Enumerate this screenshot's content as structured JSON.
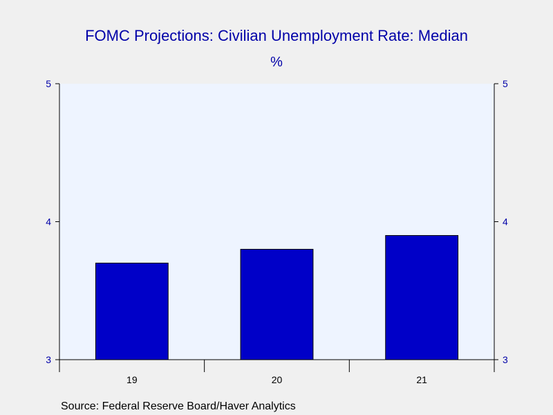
{
  "colors": {
    "background": "#f0f0f0",
    "plot_area": "#eef4ff",
    "bar_fill": "#0000c8",
    "bar_stroke": "#000000",
    "title_color": "#0000a8",
    "axis_color": "#000000",
    "tick_label_color": "#0000a8",
    "source_color": "#000000"
  },
  "chart_data": {
    "type": "bar",
    "title": "FOMC Projections: Civilian Unemployment Rate: Median",
    "subtitle": "%",
    "categories": [
      "19",
      "20",
      "21"
    ],
    "values": [
      3.7,
      3.8,
      3.9
    ],
    "ylim": [
      3,
      5
    ],
    "yticks": [
      3,
      4,
      5
    ],
    "ytick_labels": [
      "3",
      "4",
      "5"
    ],
    "right_axis_mirrored": true,
    "grid": false,
    "legend": "none",
    "source": "Source:  Federal Reserve Board/Haver Analytics"
  }
}
